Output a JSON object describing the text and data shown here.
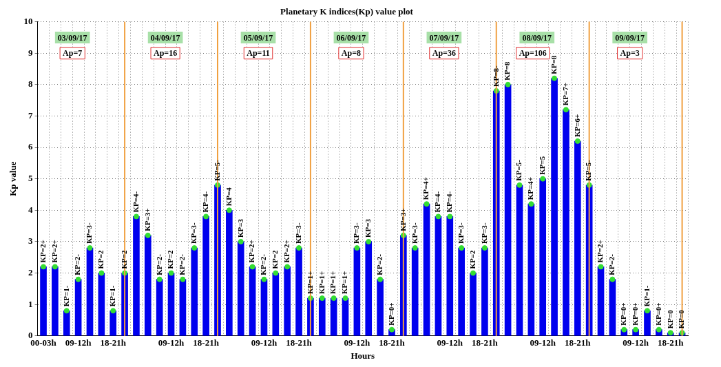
{
  "chart_data": {
    "type": "bar",
    "title": "Planetary K indices(Kp) value plot",
    "xlabel": "Hours",
    "ylabel": "Kp value",
    "categories": [
      "00-03h",
      null,
      null,
      "09-12h",
      null,
      null,
      "18-21h",
      null,
      null,
      null,
      null,
      "09-12h",
      null,
      null,
      "18-21h",
      null,
      null,
      null,
      null,
      "09-12h",
      null,
      null,
      "18-21h",
      null,
      null,
      null,
      null,
      "09-12h",
      null,
      null,
      "18-21h",
      null,
      null,
      null,
      null,
      "09-12h",
      null,
      null,
      "18-21h",
      null,
      null,
      null,
      null,
      "09-12h",
      null,
      null,
      "18-21h",
      null,
      null,
      null,
      null,
      "09-12h",
      null,
      null,
      "18-21h",
      null
    ],
    "series": [
      {
        "color": "#0000ee",
        "values": [
          2.2,
          2.2,
          0.8,
          1.8,
          2.8,
          2,
          0.8,
          2,
          3.8,
          3.2,
          1.8,
          2,
          1.8,
          2.8,
          3.8,
          4.8,
          4,
          3,
          2.2,
          1.8,
          2,
          2.2,
          2.8,
          1.2,
          1.2,
          1.2,
          1.2,
          2.8,
          3,
          1.8,
          0.2,
          3.2,
          2.8,
          4.2,
          3.8,
          3.8,
          2.8,
          2,
          2.8,
          7.8,
          8,
          4.8,
          4.2,
          5,
          8.2,
          7.2,
          6.2,
          4.8,
          2.2,
          1.8,
          0.2,
          0.2,
          0.8,
          0.2,
          0.1,
          0.1
        ],
        "value_labels": [
          "KP=2+",
          "KP=2+",
          "KP=1-",
          "KP=2-",
          "KP=3-",
          "KP=2",
          "KP=1-",
          "KP=2",
          "KP=4-",
          "KP=3+",
          "KP=2-",
          "KP=2",
          "KP=2-",
          "KP=3-",
          "KP=4-",
          "KP=5-",
          "KP=4",
          "KP=3",
          "KP=2+",
          "KP=2-",
          "KP=2",
          "KP=2+",
          "KP=3-",
          "KP=1+",
          "KP=1+",
          "KP=1+",
          "KP=1+",
          "KP=3-",
          "KP=3",
          "KP=2-",
          "KP=0+",
          "KP=3+",
          "KP=3-",
          "KP=4+",
          "KP=4-",
          "KP=4-",
          "KP=3-",
          "KP=2",
          "KP=3-",
          "KP=8-",
          "KP=8",
          "KP=5-",
          "KP=4+",
          "KP=5",
          "KP=8",
          "KP=7+",
          "KP=6+",
          "KP=5-",
          "KP=2+",
          "KP=2-",
          "KP=0+",
          "KP=0+",
          "KP=1-",
          "KP=0+",
          "KP=0",
          "KP=0"
        ]
      },
      {
        "type": "scatter",
        "color": "#33dd33",
        "marker": "circle",
        "values": [
          2.2,
          2.2,
          0.8,
          1.8,
          2.8,
          2,
          0.8,
          2,
          3.8,
          3.2,
          1.8,
          2,
          1.8,
          2.8,
          3.8,
          4.8,
          4,
          3,
          2.2,
          1.8,
          2,
          2.2,
          2.8,
          1.2,
          1.2,
          1.2,
          1.2,
          2.8,
          3,
          1.8,
          0.2,
          3.2,
          2.8,
          4.2,
          3.8,
          3.8,
          2.8,
          2,
          2.8,
          7.8,
          8,
          4.8,
          4.2,
          5,
          8.2,
          7.2,
          6.2,
          4.8,
          2.2,
          1.8,
          0.2,
          0.2,
          0.8,
          0.2,
          0.1,
          0.1
        ]
      }
    ],
    "ylim": [
      0,
      10
    ],
    "yticks": [
      0,
      1,
      2,
      3,
      4,
      5,
      6,
      7,
      8,
      9,
      10
    ],
    "grid": true,
    "legend": false,
    "annotations": [
      "03/09/17",
      "Ap=7",
      "04/09/17",
      "Ap=16",
      "05/09/17",
      "Ap=11",
      "06/09/17",
      "Ap=8",
      "07/09/17",
      "Ap=36",
      "08/09/17",
      "Ap=106",
      "09/09/17",
      "Ap=3"
    ]
  }
}
